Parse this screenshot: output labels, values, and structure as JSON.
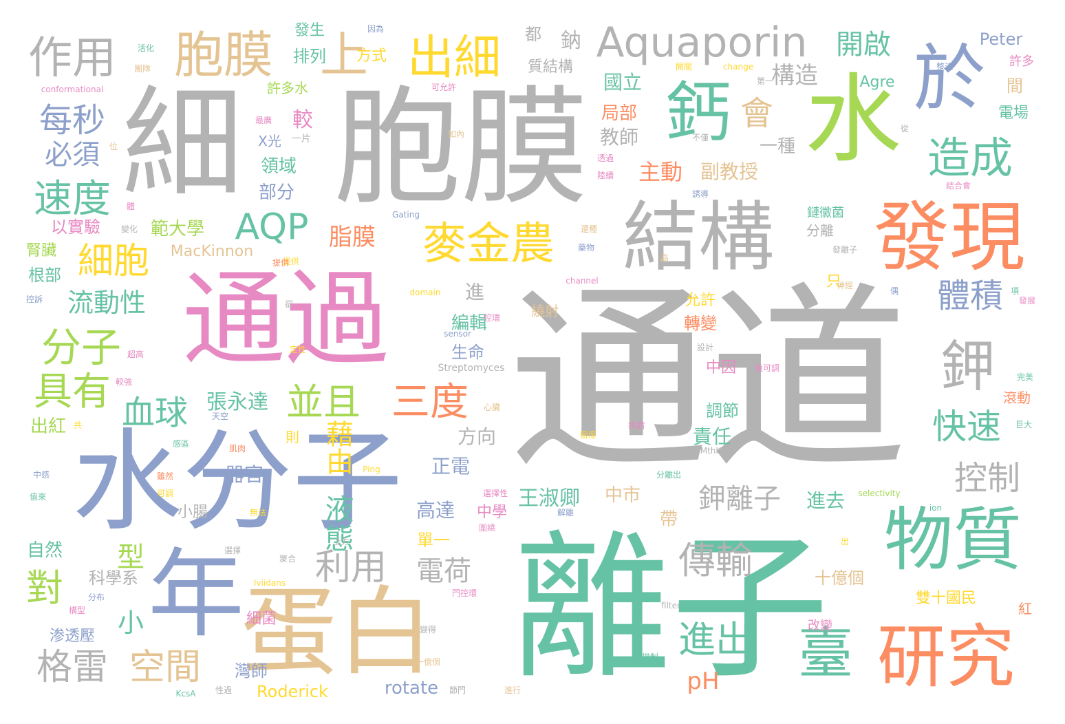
{
  "words": [
    {
      "text": "通道",
      "color": "grey"
    },
    {
      "text": "離子",
      "color": "green"
    },
    {
      "text": "胞膜",
      "color": "grey"
    },
    {
      "text": "細",
      "color": "grey"
    },
    {
      "text": "水分子",
      "color": "blue"
    },
    {
      "text": "通過",
      "color": "pink"
    },
    {
      "text": "蛋白",
      "color": "tan"
    },
    {
      "text": "年",
      "color": "blue"
    },
    {
      "text": "水",
      "color": "lime"
    },
    {
      "text": "結構",
      "color": "grey"
    },
    {
      "text": "發現",
      "color": "orange"
    },
    {
      "text": "物質",
      "color": "green"
    },
    {
      "text": "研究",
      "color": "orange"
    },
    {
      "text": "於",
      "color": "blue"
    },
    {
      "text": "鈣",
      "color": "green"
    },
    {
      "text": "胞膜",
      "color": "tan"
    },
    {
      "text": "作用",
      "color": "grey"
    },
    {
      "text": "上",
      "color": "tan"
    },
    {
      "text": "出細",
      "color": "yellow"
    },
    {
      "text": "Aquaporin",
      "color": "grey"
    },
    {
      "text": "鉀",
      "color": "grey"
    },
    {
      "text": "麥金農",
      "color": "yellow"
    },
    {
      "text": "AQP",
      "color": "green"
    },
    {
      "text": "造成",
      "color": "green"
    },
    {
      "text": "會",
      "color": "tan"
    },
    {
      "text": "每秒",
      "color": "blue"
    },
    {
      "text": "速度",
      "color": "green"
    },
    {
      "text": "必須",
      "color": "blue"
    },
    {
      "text": "分子",
      "color": "lime"
    },
    {
      "text": "具有",
      "color": "lime"
    },
    {
      "text": "細胞",
      "color": "yellow"
    },
    {
      "text": "流動性",
      "color": "green"
    },
    {
      "text": "血球",
      "color": "green"
    },
    {
      "text": "並且",
      "color": "lime"
    },
    {
      "text": "三度",
      "color": "orange"
    },
    {
      "text": "藉由",
      "color": "yellow"
    },
    {
      "text": "液態",
      "color": "green"
    },
    {
      "text": "利用",
      "color": "grey"
    },
    {
      "text": "傳輸",
      "color": "grey"
    },
    {
      "text": "進出",
      "color": "green"
    },
    {
      "text": "臺",
      "color": "green"
    },
    {
      "text": "快速",
      "color": "green"
    },
    {
      "text": "控制",
      "color": "grey"
    },
    {
      "text": "體積",
      "color": "blue"
    },
    {
      "text": "格雷",
      "color": "grey"
    },
    {
      "text": "空間",
      "color": "tan"
    },
    {
      "text": "對",
      "color": "lime"
    },
    {
      "text": "型",
      "color": "lime"
    },
    {
      "text": "小",
      "color": "green"
    },
    {
      "text": "電荷",
      "color": "grey"
    },
    {
      "text": "鉀離子",
      "color": "grey"
    },
    {
      "text": "開啟",
      "color": "green"
    },
    {
      "text": "構造",
      "color": "grey"
    },
    {
      "text": "脂膜",
      "color": "orange"
    },
    {
      "text": "主動",
      "color": "orange"
    },
    {
      "text": "副教授",
      "color": "tan"
    },
    {
      "text": "張永達",
      "color": "green"
    },
    {
      "text": "王淑卿",
      "color": "green"
    },
    {
      "text": "pH",
      "color": "orange"
    },
    {
      "text": "Roderick",
      "color": "yellow"
    },
    {
      "text": "rotate",
      "color": "blue"
    },
    {
      "text": "鈉",
      "color": "grey"
    },
    {
      "text": "都",
      "color": "grey"
    },
    {
      "text": "Peter",
      "color": "blue"
    },
    {
      "text": "許多",
      "color": "pink"
    },
    {
      "text": "Agre",
      "color": "green"
    },
    {
      "text": "國立",
      "color": "green"
    },
    {
      "text": "局部",
      "color": "orange"
    },
    {
      "text": "教師",
      "color": "grey"
    },
    {
      "text": "較",
      "color": "pink"
    },
    {
      "text": "排列",
      "color": "green"
    },
    {
      "text": "發生",
      "color": "green"
    },
    {
      "text": "方式",
      "color": "yellow"
    },
    {
      "text": "質結構",
      "color": "grey"
    },
    {
      "text": "許多水",
      "color": "lime"
    },
    {
      "text": "X光",
      "color": "blue"
    },
    {
      "text": "一片",
      "color": "grey"
    },
    {
      "text": "領域",
      "color": "green"
    },
    {
      "text": "部分",
      "color": "blue"
    },
    {
      "text": "範大學",
      "color": "lime"
    },
    {
      "text": "以實驗",
      "color": "pink"
    },
    {
      "text": "腎臟",
      "color": "lime"
    },
    {
      "text": "根部",
      "color": "green"
    },
    {
      "text": "MacKinnon",
      "color": "tan"
    },
    {
      "text": "出紅",
      "color": "lime"
    },
    {
      "text": "自然",
      "color": "green"
    },
    {
      "text": "科學系",
      "color": "grey"
    },
    {
      "text": "渗透壓",
      "color": "blue"
    },
    {
      "text": "器官",
      "color": "blue"
    },
    {
      "text": "小腸",
      "color": "grey"
    },
    {
      "text": "方向",
      "color": "grey"
    },
    {
      "text": "正電",
      "color": "blue"
    },
    {
      "text": "高達",
      "color": "blue"
    },
    {
      "text": "中學",
      "color": "pink"
    },
    {
      "text": "中市",
      "color": "tan"
    },
    {
      "text": "單一",
      "color": "yellow"
    },
    {
      "text": "細菌",
      "color": "pink"
    },
    {
      "text": "灣師",
      "color": "blue"
    },
    {
      "text": "進",
      "color": "grey"
    },
    {
      "text": "編輯",
      "color": "green"
    },
    {
      "text": "生命",
      "color": "blue"
    },
    {
      "text": "允許",
      "color": "yellow"
    },
    {
      "text": "轉變",
      "color": "orange"
    },
    {
      "text": "中因",
      "color": "pink"
    },
    {
      "text": "調節",
      "color": "green"
    },
    {
      "text": "責任",
      "color": "green"
    },
    {
      "text": "帶",
      "color": "tan"
    },
    {
      "text": "進去",
      "color": "green"
    },
    {
      "text": "十億個",
      "color": "tan"
    },
    {
      "text": "雙十國民",
      "color": "yellow"
    },
    {
      "text": "改變",
      "color": "pink"
    },
    {
      "text": "一種",
      "color": "grey"
    },
    {
      "text": "分離",
      "color": "grey"
    },
    {
      "text": "只",
      "color": "yellow"
    },
    {
      "text": "鏈黴菌",
      "color": "green"
    },
    {
      "text": "滾動",
      "color": "orange"
    },
    {
      "text": "電場",
      "color": "green"
    },
    {
      "text": "間",
      "color": "tan"
    },
    {
      "text": "Streptomyces",
      "color": "grey"
    },
    {
      "text": "conformational",
      "color": "pink"
    },
    {
      "text": "selectivity",
      "color": "lime"
    },
    {
      "text": "sensor",
      "color": "blue"
    },
    {
      "text": "domain",
      "color": "yellow"
    },
    {
      "text": "channel",
      "color": "pink"
    },
    {
      "text": "Gating",
      "color": "blue"
    },
    {
      "text": "change",
      "color": "yellow"
    },
    {
      "text": "filter",
      "color": "grey"
    },
    {
      "text": "KcsA",
      "color": "green"
    },
    {
      "text": "MthK",
      "color": "grey"
    },
    {
      "text": "Iviidans",
      "color": "yellow"
    },
    {
      "text": "ion",
      "color": "green"
    },
    {
      "text": "Ping",
      "color": "yellow"
    },
    {
      "text": "因為",
      "color": "blue"
    },
    {
      "text": "活化",
      "color": "green"
    },
    {
      "text": "團隊",
      "color": "tan"
    },
    {
      "text": "可允許",
      "color": "pink"
    },
    {
      "text": "開關",
      "color": "yellow"
    },
    {
      "text": "第一",
      "color": "grey"
    },
    {
      "text": "整流",
      "color": "blue"
    },
    {
      "text": "從",
      "color": "grey"
    },
    {
      "text": "不僅",
      "color": "grey"
    },
    {
      "text": "透過",
      "color": "pink"
    },
    {
      "text": "陸續",
      "color": "pink"
    },
    {
      "text": "誘導",
      "color": "blue"
    },
    {
      "text": "結合會",
      "color": "pink"
    },
    {
      "text": "還種",
      "color": "tan"
    },
    {
      "text": "藥物",
      "color": "blue"
    },
    {
      "text": "提供",
      "color": "yellow"
    },
    {
      "text": "高",
      "color": "tan"
    },
    {
      "text": "神經",
      "color": "tan"
    },
    {
      "text": "偶",
      "color": "blue"
    },
    {
      "text": "發展",
      "color": "pink"
    },
    {
      "text": "繞射",
      "color": "tan"
    },
    {
      "text": "控環",
      "color": "pink"
    },
    {
      "text": "設計",
      "color": "grey"
    },
    {
      "text": "值可調",
      "color": "pink"
    },
    {
      "text": "血管",
      "color": "grey"
    },
    {
      "text": "心臟",
      "color": "tan"
    },
    {
      "text": "疾病",
      "color": "pink"
    },
    {
      "text": "密度",
      "color": "yellow"
    },
    {
      "text": "分離出",
      "color": "green"
    },
    {
      "text": "選擇性",
      "color": "pink"
    },
    {
      "text": "圍繞",
      "color": "pink"
    },
    {
      "text": "解離",
      "color": "blue"
    },
    {
      "text": "門控環",
      "color": "pink"
    },
    {
      "text": "進行",
      "color": "tan"
    },
    {
      "text": "機制",
      "color": "green"
    },
    {
      "text": "節門",
      "color": "grey"
    },
    {
      "text": "一億個",
      "color": "tan"
    },
    {
      "text": "變得",
      "color": "grey"
    },
    {
      "text": "聚合",
      "color": "grey"
    },
    {
      "text": "選擇",
      "color": "grey"
    },
    {
      "text": "上方",
      "color": "grey"
    },
    {
      "text": "無法",
      "color": "yellow"
    },
    {
      "text": "雖然",
      "color": "orange"
    },
    {
      "text": "可調",
      "color": "yellow"
    },
    {
      "text": "肌肉",
      "color": "orange"
    },
    {
      "text": "感區",
      "color": "green"
    },
    {
      "text": "天空",
      "color": "blue"
    },
    {
      "text": "共",
      "color": "yellow"
    },
    {
      "text": "中感",
      "color": "blue"
    },
    {
      "text": "值來",
      "color": "green"
    },
    {
      "text": "構型",
      "color": "pink"
    },
    {
      "text": "分布",
      "color": "blue"
    },
    {
      "text": "性過",
      "color": "grey"
    },
    {
      "text": "較強",
      "color": "pink"
    },
    {
      "text": "超高",
      "color": "pink"
    },
    {
      "text": "定性",
      "color": "yellow"
    },
    {
      "text": "卻",
      "color": "grey"
    },
    {
      "text": "控訴",
      "color": "blue"
    },
    {
      "text": "提供",
      "color": "orange"
    },
    {
      "text": "變化",
      "color": "grey"
    },
    {
      "text": "體",
      "color": "pink"
    },
    {
      "text": "位",
      "color": "tan"
    },
    {
      "text": "最廣",
      "color": "pink"
    },
    {
      "text": "如內",
      "color": "tan"
    },
    {
      "text": "出",
      "color": "yellow"
    },
    {
      "text": "紅",
      "color": "orange"
    },
    {
      "text": "巨大",
      "color": "green"
    },
    {
      "text": "完美",
      "color": "green"
    },
    {
      "text": "發離子",
      "color": "grey"
    },
    {
      "text": "則",
      "color": "yellow"
    },
    {
      "text": "項",
      "color": "green"
    }
  ]
}
